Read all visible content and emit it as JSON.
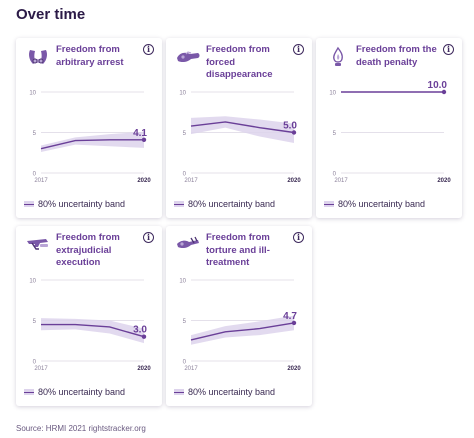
{
  "page": {
    "title": "Over time",
    "source": "Source: HRMI 2021 rightstracker.org"
  },
  "legend_label": "80% uncertainty band",
  "colors": {
    "line": "#6a3f98",
    "band": "#ddd3ec",
    "grid": "#e4e0ea",
    "axis_text": "#8a7f99",
    "title": "#6a3f98"
  },
  "cards": [
    {
      "id": "arbitrary-arrest",
      "title": "Freedom from arbitrary arrest",
      "icon": "hands-icon",
      "value_label": "4.1"
    },
    {
      "id": "forced-disappearance",
      "title": "Freedom from forced disappearance",
      "icon": "fist-icon",
      "value_label": "5.0"
    },
    {
      "id": "death-penalty",
      "title": "Freedom from the death penalty",
      "icon": "flame-icon",
      "value_label": "10.0"
    },
    {
      "id": "extrajudicial-execution",
      "title": "Freedom from extrajudicial execution",
      "icon": "gun-icon",
      "value_label": "3.0"
    },
    {
      "id": "torture",
      "title": "Freedom from torture and ill-treatment",
      "icon": "torture-icon",
      "value_label": "4.7"
    }
  ],
  "chart_data": [
    {
      "type": "line",
      "title": "Freedom from arbitrary arrest",
      "x": [
        2017,
        2018,
        2019,
        2020
      ],
      "y": [
        3.0,
        4.0,
        4.1,
        4.1
      ],
      "band_low": [
        2.6,
        3.5,
        3.3,
        3.1
      ],
      "band_high": [
        3.4,
        4.4,
        4.8,
        5.1
      ],
      "ylim": [
        0,
        10
      ],
      "yticks": [
        0,
        5,
        10
      ],
      "xticks": [
        2017,
        2020
      ]
    },
    {
      "type": "line",
      "title": "Freedom from forced disappearance",
      "x": [
        2017,
        2018,
        2019,
        2020
      ],
      "y": [
        5.8,
        6.3,
        5.6,
        5.0
      ],
      "band_low": [
        4.8,
        5.6,
        4.5,
        3.7
      ],
      "band_high": [
        6.8,
        7.0,
        6.6,
        6.1
      ],
      "ylim": [
        0,
        10
      ],
      "yticks": [
        0,
        5,
        10
      ],
      "xticks": [
        2017,
        2020
      ]
    },
    {
      "type": "line",
      "title": "Freedom from the death penalty",
      "x": [
        2017,
        2018,
        2019,
        2020
      ],
      "y": [
        10.0,
        10.0,
        10.0,
        10.0
      ],
      "band_low": [
        10.0,
        10.0,
        10.0,
        10.0
      ],
      "band_high": [
        10.0,
        10.0,
        10.0,
        10.0
      ],
      "ylim": [
        0,
        10
      ],
      "yticks": [
        0,
        5,
        10
      ],
      "xticks": [
        2017,
        2020
      ]
    },
    {
      "type": "line",
      "title": "Freedom from extrajudicial execution",
      "x": [
        2017,
        2018,
        2019,
        2020
      ],
      "y": [
        4.5,
        4.5,
        4.2,
        3.0
      ],
      "band_low": [
        3.8,
        3.9,
        3.4,
        2.2
      ],
      "band_high": [
        5.3,
        5.2,
        5.0,
        4.0
      ],
      "ylim": [
        0,
        10
      ],
      "yticks": [
        0,
        5,
        10
      ],
      "xticks": [
        2017,
        2020
      ]
    },
    {
      "type": "line",
      "title": "Freedom from torture and ill-treatment",
      "x": [
        2017,
        2018,
        2019,
        2020
      ],
      "y": [
        2.6,
        3.6,
        4.0,
        4.7
      ],
      "band_low": [
        2.0,
        2.9,
        3.2,
        3.8
      ],
      "band_high": [
        3.2,
        4.3,
        4.9,
        5.6
      ],
      "ylim": [
        0,
        10
      ],
      "yticks": [
        0,
        5,
        10
      ],
      "xticks": [
        2017,
        2020
      ]
    }
  ]
}
